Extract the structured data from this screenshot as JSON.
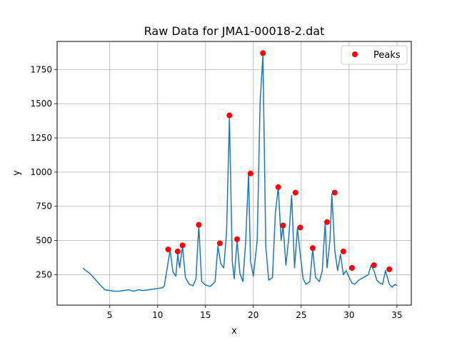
{
  "chart_data": {
    "type": "line",
    "title": "Raw Data for JMA1-00018-2.dat",
    "xlabel": "x",
    "ylabel": "y",
    "xlim": [
      -0.5,
      36.5
    ],
    "ylim": [
      28,
      1955
    ],
    "x_ticks": [
      5,
      10,
      15,
      20,
      25,
      30,
      35
    ],
    "y_ticks": [
      250,
      500,
      750,
      1000,
      1250,
      1500,
      1750
    ],
    "grid": true,
    "legend": {
      "position": "top-right",
      "entries": [
        "Peaks"
      ]
    },
    "colors": {
      "line": "#1f77b4",
      "peaks": "#ff0000"
    },
    "series": [
      {
        "type": "line",
        "x": [
          2.2,
          2.5,
          3.0,
          3.5,
          4.0,
          4.5,
          5.0,
          5.5,
          6.0,
          6.5,
          7.0,
          7.5,
          8.0,
          8.5,
          9.0,
          9.5,
          10.0,
          10.5,
          10.7,
          11.0,
          11.3,
          11.6,
          11.9,
          12.1,
          12.3,
          12.6,
          12.9,
          13.3,
          13.7,
          14.0,
          14.3,
          14.6,
          15.0,
          15.5,
          16.0,
          16.3,
          16.6,
          16.9,
          17.2,
          17.5,
          17.8,
          18.0,
          18.3,
          18.6,
          18.9,
          19.2,
          19.5,
          19.7,
          20.0,
          20.4,
          20.7,
          21.0,
          21.3,
          21.6,
          22.0,
          22.3,
          22.6,
          22.9,
          23.1,
          23.4,
          23.7,
          24.0,
          24.3,
          24.6,
          24.9,
          25.2,
          25.5,
          25.9,
          26.2,
          26.5,
          26.9,
          27.2,
          27.5,
          27.7,
          28.0,
          28.2,
          28.5,
          28.8,
          29.1,
          29.4,
          29.7,
          30.0,
          30.3,
          30.6,
          31.0,
          31.5,
          32.0,
          32.3,
          32.6,
          32.9,
          33.2,
          33.5,
          33.8,
          34.2,
          34.5,
          34.8,
          35.0
        ],
        "y": [
          300,
          280,
          255,
          215,
          175,
          140,
          135,
          130,
          130,
          135,
          140,
          130,
          140,
          135,
          140,
          145,
          150,
          155,
          170,
          300,
          430,
          270,
          240,
          400,
          300,
          460,
          230,
          180,
          170,
          220,
          610,
          200,
          175,
          165,
          200,
          460,
          330,
          300,
          560,
          1400,
          350,
          220,
          500,
          260,
          200,
          500,
          990,
          350,
          240,
          500,
          1500,
          1860,
          460,
          210,
          230,
          700,
          890,
          500,
          610,
          320,
          520,
          830,
          300,
          590,
          400,
          220,
          180,
          200,
          440,
          230,
          200,
          280,
          630,
          300,
          500,
          840,
          430,
          280,
          400,
          250,
          280,
          230,
          190,
          180,
          210,
          230,
          250,
          320,
          280,
          210,
          190,
          180,
          280,
          180,
          160,
          180,
          170
        ]
      },
      {
        "name": "Peaks",
        "type": "scatter",
        "x": [
          11.1,
          12.1,
          12.6,
          14.3,
          16.5,
          17.5,
          18.3,
          19.7,
          21.0,
          22.6,
          23.1,
          24.4,
          24.9,
          26.2,
          27.7,
          28.5,
          29.4,
          30.3,
          32.6,
          34.2
        ],
        "y": [
          435,
          420,
          465,
          615,
          480,
          1415,
          510,
          990,
          1870,
          890,
          610,
          850,
          595,
          445,
          635,
          850,
          420,
          300,
          320,
          290
        ]
      }
    ]
  }
}
